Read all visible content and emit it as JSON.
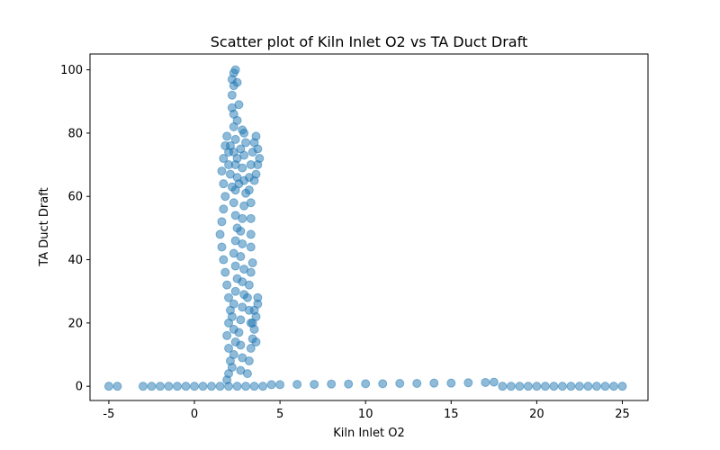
{
  "chart_data": {
    "type": "scatter",
    "title": "Scatter plot of Kiln Inlet O2 vs TA Duct Draft",
    "xlabel": "Kiln Inlet O2",
    "ylabel": "TA Duct Draft",
    "xlim": [
      -6.1,
      26.5
    ],
    "ylim": [
      -4.5,
      105
    ],
    "xticks": [
      -5,
      0,
      5,
      10,
      15,
      20,
      25
    ],
    "yticks": [
      0,
      20,
      40,
      60,
      80,
      100
    ],
    "grid": false,
    "legend": "none",
    "marker_color": "#1f77b4",
    "marker_alpha": 0.5,
    "series": [
      {
        "points": [
          [
            -5.0,
            0
          ],
          [
            -4.5,
            0
          ],
          [
            -3.0,
            0
          ],
          [
            -2.5,
            0
          ],
          [
            -2.0,
            0
          ],
          [
            -1.5,
            0
          ],
          [
            -1.0,
            0
          ],
          [
            -0.5,
            0
          ],
          [
            0.0,
            0
          ],
          [
            0.5,
            0
          ],
          [
            1.0,
            0
          ],
          [
            1.5,
            0
          ],
          [
            2.0,
            0
          ],
          [
            2.5,
            0
          ],
          [
            3.0,
            0
          ],
          [
            3.5,
            0
          ],
          [
            4.0,
            0
          ],
          [
            4.5,
            0.5
          ],
          [
            5.0,
            0.5
          ],
          [
            6.0,
            0.6
          ],
          [
            7.0,
            0.6
          ],
          [
            8.0,
            0.7
          ],
          [
            9.0,
            0.7
          ],
          [
            10.0,
            0.8
          ],
          [
            11.0,
            0.8
          ],
          [
            12.0,
            0.9
          ],
          [
            13.0,
            0.9
          ],
          [
            14.0,
            1.0
          ],
          [
            15.0,
            1.0
          ],
          [
            16.0,
            1.1
          ],
          [
            17.0,
            1.2
          ],
          [
            17.5,
            1.3
          ],
          [
            18.0,
            0
          ],
          [
            18.5,
            0
          ],
          [
            19.0,
            0
          ],
          [
            19.5,
            0
          ],
          [
            20.0,
            0
          ],
          [
            20.5,
            0
          ],
          [
            21.0,
            0
          ],
          [
            21.5,
            0
          ],
          [
            22.0,
            0
          ],
          [
            22.5,
            0
          ],
          [
            23.0,
            0
          ],
          [
            23.5,
            0
          ],
          [
            24.0,
            0
          ],
          [
            24.5,
            0
          ],
          [
            25.0,
            0
          ],
          [
            1.9,
            2
          ],
          [
            2.0,
            4
          ],
          [
            2.1,
            8
          ],
          [
            2.0,
            12
          ],
          [
            1.9,
            16
          ],
          [
            2.0,
            20
          ],
          [
            2.1,
            24
          ],
          [
            2.0,
            28
          ],
          [
            1.9,
            32
          ],
          [
            1.8,
            36
          ],
          [
            1.7,
            40
          ],
          [
            1.6,
            44
          ],
          [
            1.5,
            48
          ],
          [
            1.6,
            52
          ],
          [
            1.7,
            56
          ],
          [
            1.8,
            60
          ],
          [
            1.7,
            64
          ],
          [
            1.6,
            68
          ],
          [
            1.7,
            72
          ],
          [
            1.8,
            76
          ],
          [
            1.9,
            79
          ],
          [
            2.2,
            6
          ],
          [
            2.3,
            10
          ],
          [
            2.4,
            14
          ],
          [
            2.3,
            18
          ],
          [
            2.2,
            22
          ],
          [
            2.3,
            26
          ],
          [
            2.4,
            30
          ],
          [
            2.5,
            34
          ],
          [
            2.4,
            38
          ],
          [
            2.3,
            42
          ],
          [
            2.4,
            46
          ],
          [
            2.5,
            50
          ],
          [
            2.4,
            54
          ],
          [
            2.3,
            58
          ],
          [
            2.4,
            62
          ],
          [
            2.5,
            66
          ],
          [
            2.4,
            70
          ],
          [
            2.3,
            74
          ],
          [
            2.4,
            78
          ],
          [
            2.3,
            82
          ],
          [
            2.3,
            86
          ],
          [
            2.2,
            88
          ],
          [
            2.2,
            92
          ],
          [
            2.3,
            95
          ],
          [
            2.2,
            97
          ],
          [
            2.3,
            99
          ],
          [
            2.4,
            100
          ],
          [
            2.5,
            96
          ],
          [
            2.6,
            89
          ],
          [
            2.5,
            84
          ],
          [
            2.7,
            5
          ],
          [
            2.8,
            9
          ],
          [
            2.7,
            13
          ],
          [
            2.6,
            17
          ],
          [
            2.7,
            21
          ],
          [
            2.8,
            25
          ],
          [
            2.9,
            29
          ],
          [
            2.8,
            33
          ],
          [
            2.9,
            37
          ],
          [
            2.7,
            41
          ],
          [
            2.8,
            45
          ],
          [
            2.7,
            49
          ],
          [
            2.8,
            53
          ],
          [
            2.9,
            57
          ],
          [
            3.0,
            61
          ],
          [
            2.9,
            65
          ],
          [
            2.8,
            69
          ],
          [
            2.9,
            73
          ],
          [
            3.0,
            77
          ],
          [
            2.9,
            80
          ],
          [
            2.8,
            81
          ],
          [
            3.1,
            4
          ],
          [
            3.2,
            8
          ],
          [
            3.3,
            12
          ],
          [
            3.4,
            15
          ],
          [
            3.3,
            20
          ],
          [
            3.2,
            24
          ],
          [
            3.1,
            28
          ],
          [
            3.2,
            32
          ],
          [
            3.3,
            36
          ],
          [
            3.4,
            39
          ],
          [
            3.3,
            44
          ],
          [
            3.3,
            48
          ],
          [
            3.3,
            53
          ],
          [
            3.3,
            58
          ],
          [
            3.2,
            62
          ],
          [
            3.2,
            66
          ],
          [
            3.3,
            70
          ],
          [
            3.6,
            14
          ],
          [
            3.5,
            18
          ],
          [
            3.6,
            22
          ],
          [
            3.7,
            26
          ],
          [
            3.7,
            28
          ],
          [
            3.5,
            24
          ],
          [
            3.4,
            20
          ],
          [
            3.4,
            74
          ],
          [
            3.5,
            77
          ],
          [
            3.6,
            79
          ],
          [
            3.7,
            75
          ],
          [
            3.8,
            72
          ],
          [
            3.7,
            70
          ],
          [
            3.6,
            67
          ],
          [
            3.5,
            65
          ],
          [
            2.0,
            70
          ],
          [
            2.1,
            67
          ],
          [
            2.2,
            63
          ],
          [
            2.6,
            64
          ],
          [
            2.5,
            72
          ],
          [
            2.7,
            75
          ],
          [
            2.0,
            74
          ],
          [
            2.1,
            76
          ]
        ]
      }
    ]
  }
}
